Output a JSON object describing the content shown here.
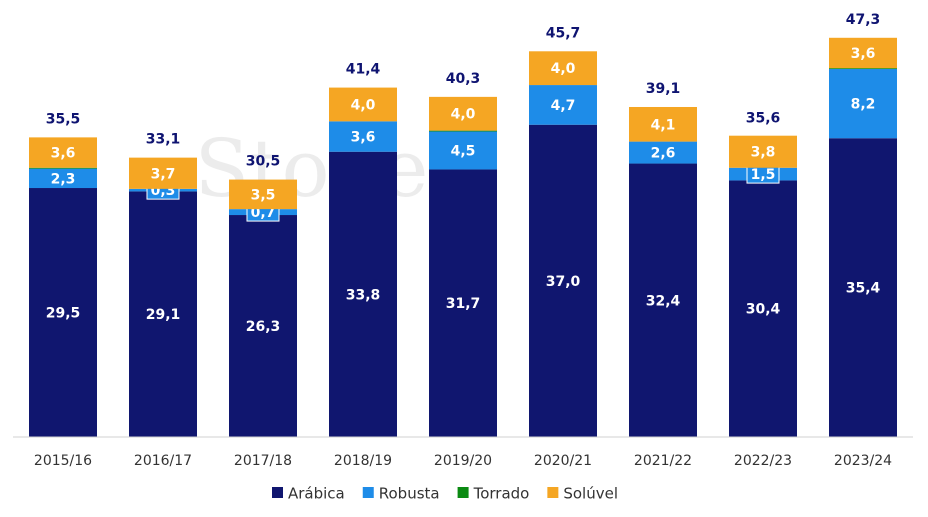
{
  "chart_data": {
    "type": "stacked-bar",
    "watermark": "StoneX",
    "categories": [
      "2015/16",
      "2016/17",
      "2017/18",
      "2018/19",
      "2019/20",
      "2020/21",
      "2021/22",
      "2022/23",
      "2023/24"
    ],
    "series": [
      {
        "name": "Arábica",
        "color": "#10166f",
        "values": [
          29.5,
          29.1,
          26.3,
          33.8,
          31.7,
          37.0,
          32.4,
          30.4,
          35.4
        ],
        "value_labels": [
          "29,5",
          "29,1",
          "26,3",
          "33,8",
          "31,7",
          "37,0",
          "32,4",
          "30,4",
          "35,4"
        ]
      },
      {
        "name": "Robusta",
        "color": "#1e8ce8",
        "values": [
          2.3,
          0.3,
          0.7,
          3.6,
          4.5,
          4.7,
          2.6,
          1.5,
          8.2
        ],
        "value_labels": [
          "2,3",
          "0,3",
          "0,7",
          "3,6",
          "4,5",
          "4,7",
          "2,6",
          "1,5",
          "8,2"
        ]
      },
      {
        "name": "Torrado",
        "color": "#0b8a12",
        "values": [
          0.1,
          0,
          0,
          0,
          0.1,
          0,
          0,
          0,
          0.1
        ]
      },
      {
        "name": "Solúvel",
        "color": "#f5a623",
        "values": [
          3.6,
          3.7,
          3.5,
          4.0,
          4.0,
          4.0,
          4.1,
          3.8,
          3.6
        ],
        "value_labels": [
          "3,6",
          "3,7",
          "3,5",
          "4,0",
          "4,0",
          "4,0",
          "4,1",
          "3,8",
          "3,6"
        ]
      }
    ],
    "totals": {
      "values": [
        35.5,
        33.1,
        30.5,
        41.4,
        40.3,
        45.7,
        39.1,
        35.6,
        47.3
      ],
      "value_labels": [
        "35,5",
        "33,1",
        "30,5",
        "41,4",
        "40,3",
        "45,7",
        "39,1",
        "35,6",
        "47,3"
      ]
    },
    "ylim": [
      0,
      50
    ]
  }
}
